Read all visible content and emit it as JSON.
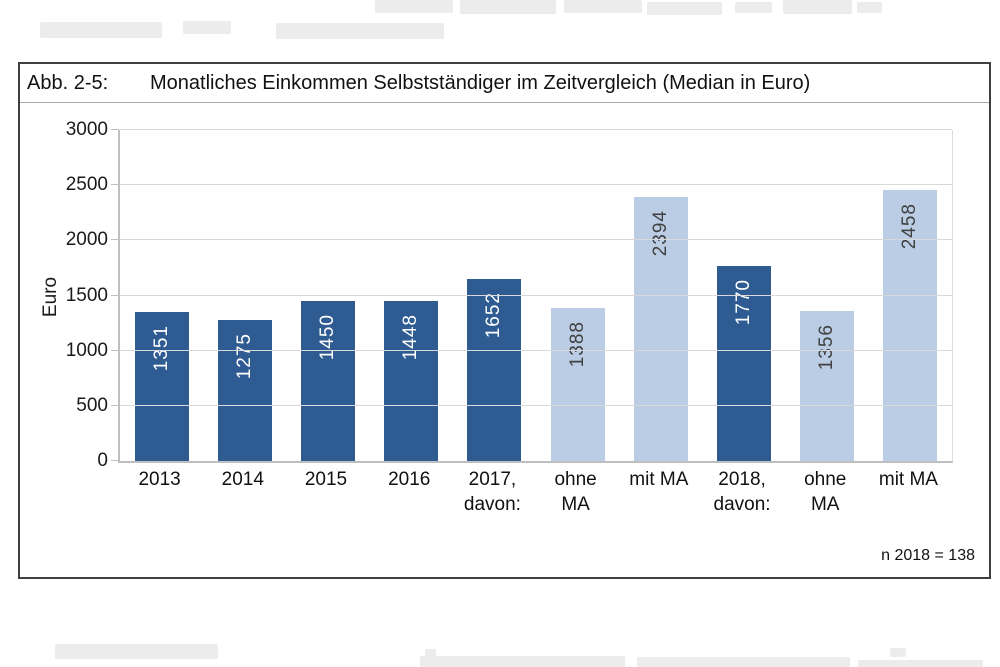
{
  "figure": {
    "label": "Abb. 2-5:",
    "title": "Monatliches Einkommen Selbstständiger im Zeitvergleich (Median in Euro)",
    "note": "n 2018 = 138"
  },
  "chart_data": {
    "type": "bar",
    "title": "Monatliches Einkommen Selbstständiger im Zeitvergleich (Median in Euro)",
    "xlabel": "",
    "ylabel": "Euro",
    "ylim": [
      0,
      3000
    ],
    "yticks": [
      0,
      500,
      1000,
      1500,
      2000,
      2500,
      3000
    ],
    "grid": true,
    "legend": "none",
    "categories": [
      "2013",
      "2014",
      "2015",
      "2016",
      "2017,\ndavon:",
      "ohne\nMA",
      "mit MA",
      "2018,\ndavon:",
      "ohne\nMA",
      "mit MA"
    ],
    "values": [
      1351,
      1275,
      1450,
      1448,
      1652,
      1388,
      2394,
      1770,
      1356,
      2458
    ],
    "bar_styles": [
      "dark",
      "dark",
      "dark",
      "dark",
      "dark",
      "light",
      "light",
      "dark",
      "light",
      "light"
    ],
    "colors": {
      "dark": "#2F5B93",
      "light": "#BACDE4",
      "dark_bar_label": "#FFFFFF",
      "light_bar_label": "#404040",
      "gridline": "#D9D9D9",
      "axis": "#BFBFBF"
    },
    "annotation": "n 2018 = 138"
  }
}
